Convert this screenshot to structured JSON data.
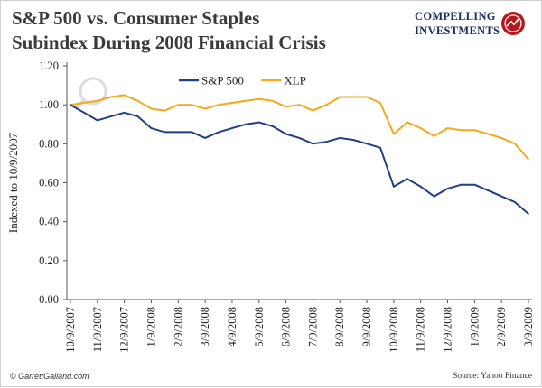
{
  "header": {
    "title_line1": "S&P 500 vs. Consumer Staples",
    "title_line2": "Subindex During 2008 Financial Crisis"
  },
  "brand": {
    "line1": "COMPELLING",
    "line2": "INVESTMENTS"
  },
  "footer": {
    "left": "© GarrettGalland.com",
    "right": "Source: Yahoo Finance"
  },
  "colors": {
    "sp500": "#1f3f87",
    "xlp": "#f5a81c",
    "text": "#222222",
    "title": "#3a3a3a",
    "brand": "#1c2c5c"
  },
  "chart_data": {
    "type": "line",
    "title": "S&P 500 vs. Consumer Staples Subindex During 2008 Financial Crisis",
    "xlabel": "",
    "ylabel": "Indexed to 10/9/2007",
    "ylim": [
      0,
      1.2
    ],
    "yticks": [
      "0.00",
      "0.20",
      "0.40",
      "0.60",
      "0.80",
      "1.00",
      "1.20"
    ],
    "xticks": [
      "10/9/2007",
      "11/9/2007",
      "12/9/2007",
      "1/9/2008",
      "2/9/2008",
      "3/9/2008",
      "4/9/2008",
      "5/9/2008",
      "6/9/2008",
      "7/9/2008",
      "8/9/2008",
      "9/9/2008",
      "10/9/2008",
      "11/9/2008",
      "12/9/2008",
      "1/9/2009",
      "2/9/2009",
      "3/9/2009"
    ],
    "x": [
      "10/9/2007",
      "10/23/2007",
      "11/9/2007",
      "11/23/2007",
      "12/9/2007",
      "12/23/2007",
      "1/9/2008",
      "1/23/2008",
      "2/9/2008",
      "2/23/2008",
      "3/9/2008",
      "3/23/2008",
      "4/9/2008",
      "4/23/2008",
      "5/9/2008",
      "5/23/2008",
      "6/9/2008",
      "6/23/2008",
      "7/9/2008",
      "7/23/2008",
      "8/9/2008",
      "8/23/2008",
      "9/9/2008",
      "9/23/2008",
      "10/9/2008",
      "10/23/2008",
      "11/9/2008",
      "11/23/2008",
      "12/9/2008",
      "12/23/2008",
      "1/9/2009",
      "1/23/2009",
      "2/9/2009",
      "2/23/2009",
      "3/9/2009"
    ],
    "legend_position": "top-center",
    "grid": false,
    "series": [
      {
        "name": "S&P 500",
        "color": "#1f3f87",
        "values": [
          1.0,
          0.96,
          0.92,
          0.94,
          0.96,
          0.94,
          0.88,
          0.86,
          0.86,
          0.86,
          0.83,
          0.86,
          0.88,
          0.9,
          0.91,
          0.89,
          0.85,
          0.83,
          0.8,
          0.81,
          0.83,
          0.82,
          0.8,
          0.78,
          0.58,
          0.62,
          0.58,
          0.53,
          0.57,
          0.59,
          0.59,
          0.56,
          0.53,
          0.5,
          0.44
        ]
      },
      {
        "name": "XLP",
        "color": "#f5a81c",
        "values": [
          1.0,
          1.01,
          1.02,
          1.04,
          1.05,
          1.02,
          0.98,
          0.97,
          1.0,
          1.0,
          0.98,
          1.0,
          1.01,
          1.02,
          1.03,
          1.02,
          0.99,
          1.0,
          0.97,
          1.0,
          1.04,
          1.04,
          1.04,
          1.01,
          0.85,
          0.91,
          0.88,
          0.84,
          0.88,
          0.87,
          0.87,
          0.85,
          0.83,
          0.8,
          0.72
        ]
      }
    ]
  }
}
